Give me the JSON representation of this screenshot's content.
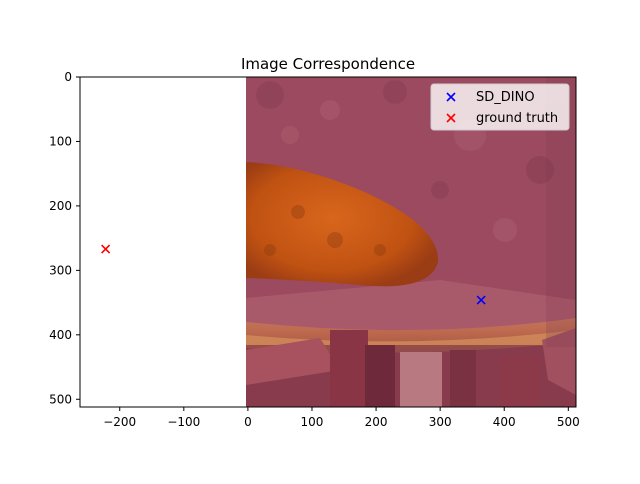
{
  "chart_data": {
    "type": "scatter",
    "title": "Image Correspondence",
    "xlabel": "",
    "ylabel": "",
    "xlim": [
      -262,
      512
    ],
    "ylim": [
      512,
      0
    ],
    "y_inverted": true,
    "xticks": [
      -200,
      -100,
      0,
      100,
      200,
      300,
      400,
      500
    ],
    "yticks": [
      0,
      100,
      200,
      300,
      400,
      500
    ],
    "xtick_labels": [
      "−200",
      "−100",
      "0",
      "100",
      "200",
      "300",
      "400",
      "500"
    ],
    "ytick_labels": [
      "0",
      "100",
      "200",
      "300",
      "400",
      "500"
    ],
    "background_image": {
      "description_color": "#9a4a5e",
      "x_extent": [
        0,
        512
      ],
      "y_extent": [
        0,
        512
      ]
    },
    "series": [
      {
        "name": "SD_DINO",
        "color": "#0000ff",
        "marker": "x",
        "points": [
          {
            "x": 364,
            "y": 346
          }
        ]
      },
      {
        "name": "ground truth",
        "color": "#ff0000",
        "marker": "x",
        "points": [
          {
            "x": -222,
            "y": 267
          }
        ]
      }
    ],
    "legend": {
      "placement": "top-right"
    },
    "grid": false
  }
}
